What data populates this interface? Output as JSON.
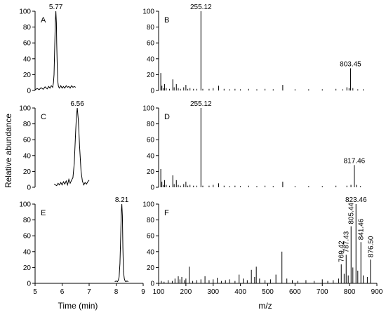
{
  "chart_data": [
    {
      "panel": "A",
      "type": "line",
      "xlim": [
        5,
        9
      ],
      "ylim": [
        0,
        100
      ],
      "yticks": [
        0,
        20,
        40,
        60,
        80,
        100
      ],
      "x": [
        5.0,
        5.08,
        5.15,
        5.22,
        5.3,
        5.37,
        5.45,
        5.5,
        5.55,
        5.6,
        5.65,
        5.68,
        5.7,
        5.72,
        5.74,
        5.75,
        5.77,
        5.79,
        5.8,
        5.82,
        5.84,
        5.86,
        5.88,
        5.9,
        5.95,
        6.0,
        6.05,
        6.1,
        6.15,
        6.2,
        6.25,
        6.3,
        6.35,
        6.4,
        6.45,
        6.5
      ],
      "y": [
        1,
        2.5,
        1,
        3.5,
        1.5,
        4.5,
        2,
        5,
        3,
        6,
        4,
        10,
        20,
        45,
        75,
        88,
        100,
        85,
        60,
        30,
        12,
        6,
        4,
        3,
        6,
        3,
        5,
        3,
        6,
        4,
        5,
        3,
        6,
        4,
        5,
        4
      ],
      "annotations": [
        {
          "x": 5.77,
          "label": "5.77"
        }
      ]
    },
    {
      "panel": "B",
      "type": "bar",
      "xlim": [
        100,
        900
      ],
      "ylim": [
        0,
        100
      ],
      "yticks": [
        0,
        20,
        40,
        60,
        80,
        100
      ],
      "x": [
        108,
        112,
        118,
        122,
        128,
        140,
        152,
        157,
        165,
        172,
        180,
        192,
        200,
        207,
        215,
        228,
        240,
        255.12,
        262,
        285,
        300,
        320,
        340,
        360,
        380,
        400,
        430,
        460,
        490,
        520,
        555,
        600,
        650,
        700,
        750,
        775,
        790,
        798,
        803.45,
        812,
        830,
        850
      ],
      "y": [
        22,
        6,
        3,
        8,
        3,
        2,
        14,
        4,
        8,
        3,
        2,
        4,
        7,
        2,
        3,
        2,
        2,
        100,
        2,
        2,
        3,
        6,
        2,
        1.5,
        2,
        1.5,
        2,
        1.5,
        2,
        1.5,
        7,
        1.5,
        1.5,
        1.5,
        2,
        1.5,
        4,
        3,
        28,
        3,
        1.5,
        1.5
      ],
      "annotations": [
        {
          "x": 255.12,
          "label": "255.12"
        },
        {
          "x": 803.45,
          "label": "803.45"
        }
      ]
    },
    {
      "panel": "C",
      "type": "line",
      "xlim": [
        5,
        9
      ],
      "ylim": [
        0,
        100
      ],
      "yticks": [
        0,
        20,
        40,
        60,
        80,
        100
      ],
      "x": [
        5.7,
        5.8,
        5.85,
        5.9,
        5.95,
        6.0,
        6.05,
        6.1,
        6.15,
        6.2,
        6.25,
        6.3,
        6.35,
        6.4,
        6.45,
        6.5,
        6.53,
        6.56,
        6.6,
        6.65,
        6.7,
        6.75,
        6.8,
        6.85,
        6.9,
        6.95,
        7.0
      ],
      "y": [
        4,
        2,
        5,
        3,
        6,
        3,
        7,
        4,
        8,
        3,
        10,
        5,
        9,
        12,
        30,
        70,
        90,
        100,
        85,
        50,
        20,
        8,
        3,
        6,
        4,
        7,
        9
      ],
      "annotations": [
        {
          "x": 6.56,
          "label": "6.56"
        }
      ]
    },
    {
      "panel": "D",
      "type": "bar",
      "xlim": [
        100,
        900
      ],
      "ylim": [
        0,
        100
      ],
      "yticks": [
        0,
        20,
        40,
        60,
        80,
        100
      ],
      "x": [
        108,
        112,
        118,
        122,
        128,
        140,
        152,
        157,
        165,
        172,
        180,
        192,
        200,
        207,
        215,
        228,
        240,
        255.12,
        262,
        285,
        300,
        320,
        340,
        360,
        380,
        400,
        430,
        460,
        490,
        520,
        555,
        600,
        650,
        700,
        750,
        790,
        805,
        817.46,
        825,
        840
      ],
      "y": [
        23,
        7,
        3,
        9,
        3,
        2,
        15,
        4,
        9,
        3,
        2,
        4,
        7,
        2,
        3,
        2,
        2,
        100,
        2,
        2,
        3,
        5,
        2,
        1.5,
        2,
        1.5,
        2,
        1.5,
        2,
        1.5,
        7,
        1.5,
        1.5,
        1.5,
        2,
        2,
        3,
        28,
        3,
        1.5
      ],
      "annotations": [
        {
          "x": 255.12,
          "label": "255.12"
        },
        {
          "x": 817.46,
          "label": "817.46"
        }
      ]
    },
    {
      "panel": "E",
      "type": "line",
      "xlim": [
        5,
        9
      ],
      "ylim": [
        0,
        100
      ],
      "yticks": [
        0,
        20,
        40,
        60,
        80,
        100
      ],
      "x": [
        7.95,
        8.0,
        8.05,
        8.08,
        8.11,
        8.14,
        8.17,
        8.19,
        8.21,
        8.23,
        8.25,
        8.27,
        8.3,
        8.33,
        8.36,
        8.4,
        8.45
      ],
      "y": [
        2,
        3,
        2,
        4,
        8,
        25,
        60,
        90,
        100,
        85,
        45,
        15,
        6,
        3,
        2,
        3,
        2
      ],
      "annotations": [
        {
          "x": 8.21,
          "label": "8.21"
        }
      ]
    },
    {
      "panel": "F",
      "type": "bar",
      "xlim": [
        100,
        900
      ],
      "ylim": [
        0,
        100
      ],
      "yticks": [
        0,
        20,
        40,
        60,
        80,
        100
      ],
      "x": [
        110,
        120,
        135,
        150,
        160,
        172,
        178,
        185,
        195,
        200,
        212,
        225,
        240,
        255,
        270,
        285,
        300,
        315,
        330,
        345,
        360,
        380,
        395,
        410,
        425,
        440,
        452,
        458,
        470,
        490,
        510,
        530,
        552,
        570,
        590,
        610,
        640,
        670,
        700,
        720,
        740,
        760,
        769.42,
        780,
        787.43,
        795,
        805.44,
        812,
        823.46,
        830,
        841.46,
        850,
        865,
        876.5
      ],
      "y": [
        3,
        2,
        4,
        3,
        6,
        9,
        5,
        8,
        4,
        6,
        21,
        3,
        4,
        5,
        9,
        4,
        5,
        7,
        3,
        4,
        5,
        3,
        11,
        6,
        4,
        17,
        8,
        21,
        6,
        4,
        5,
        11,
        40,
        6,
        4,
        3,
        4,
        3,
        5,
        3,
        4,
        6,
        24,
        12,
        36,
        10,
        72,
        20,
        100,
        16,
        52,
        10,
        8,
        30
      ],
      "annotations": [
        {
          "x": 769.42,
          "label": "769.42"
        },
        {
          "x": 787.43,
          "label": "787.43"
        },
        {
          "x": 805.44,
          "label": "805.44"
        },
        {
          "x": 823.46,
          "label": "823.46"
        },
        {
          "x": 841.46,
          "label": "841.46"
        },
        {
          "x": 876.5,
          "label": "876.50"
        }
      ]
    }
  ],
  "axes": {
    "ylabel": "Relative abundance",
    "xlabel_left": "Time (min)",
    "xlabel_right": "m/z",
    "xticks_left": [
      5,
      6,
      7,
      8,
      9
    ],
    "xticks_right": [
      100,
      200,
      300,
      400,
      500,
      600,
      700,
      800,
      900
    ]
  }
}
